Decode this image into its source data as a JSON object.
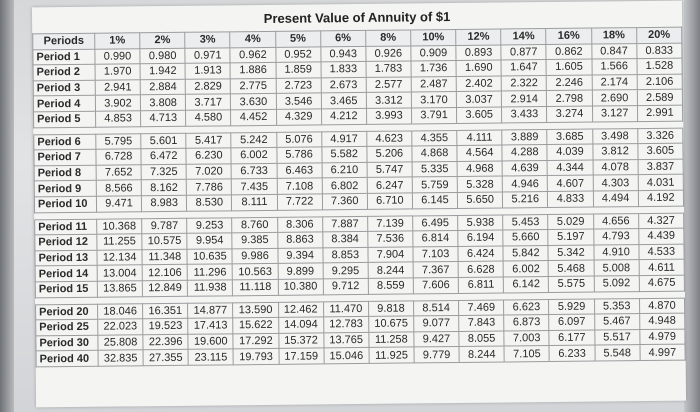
{
  "title": "Present Value of Annuity of $1",
  "header": [
    "Periods",
    "1%",
    "2%",
    "3%",
    "4%",
    "5%",
    "6%",
    "8%",
    "10%",
    "12%",
    "14%",
    "16%",
    "18%",
    "20%"
  ],
  "groups": [
    [
      {
        "label": "Period 1",
        "values": [
          "0.990",
          "0.980",
          "0.971",
          "0.962",
          "0.952",
          "0.943",
          "0.926",
          "0.909",
          "0.893",
          "0.877",
          "0.862",
          "0.847",
          "0.833"
        ]
      },
      {
        "label": "Period 2",
        "values": [
          "1.970",
          "1.942",
          "1.913",
          "1.886",
          "1.859",
          "1.833",
          "1.783",
          "1.736",
          "1.690",
          "1.647",
          "1.605",
          "1.566",
          "1.528"
        ]
      },
      {
        "label": "Period 3",
        "values": [
          "2.941",
          "2.884",
          "2.829",
          "2.775",
          "2.723",
          "2.673",
          "2.577",
          "2.487",
          "2.402",
          "2.322",
          "2.246",
          "2.174",
          "2.106"
        ]
      },
      {
        "label": "Period 4",
        "values": [
          "3.902",
          "3.808",
          "3.717",
          "3.630",
          "3.546",
          "3.465",
          "3.312",
          "3.170",
          "3.037",
          "2.914",
          "2.798",
          "2.690",
          "2.589"
        ]
      },
      {
        "label": "Period 5",
        "values": [
          "4.853",
          "4.713",
          "4.580",
          "4.452",
          "4.329",
          "4.212",
          "3.993",
          "3.791",
          "3.605",
          "3.433",
          "3.274",
          "3.127",
          "2.991"
        ]
      }
    ],
    [
      {
        "label": "Period 6",
        "values": [
          "5.795",
          "5.601",
          "5.417",
          "5.242",
          "5.076",
          "4.917",
          "4.623",
          "4.355",
          "4.111",
          "3.889",
          "3.685",
          "3.498",
          "3.326"
        ]
      },
      {
        "label": "Period 7",
        "values": [
          "6.728",
          "6.472",
          "6.230",
          "6.002",
          "5.786",
          "5.582",
          "5.206",
          "4.868",
          "4.564",
          "4.288",
          "4.039",
          "3.812",
          "3.605"
        ]
      },
      {
        "label": "Period 8",
        "values": [
          "7.652",
          "7.325",
          "7.020",
          "6.733",
          "6.463",
          "6.210",
          "5.747",
          "5.335",
          "4.968",
          "4.639",
          "4.344",
          "4.078",
          "3.837"
        ]
      },
      {
        "label": "Period 9",
        "values": [
          "8.566",
          "8.162",
          "7.786",
          "7.435",
          "7.108",
          "6.802",
          "6.247",
          "5.759",
          "5.328",
          "4.946",
          "4.607",
          "4.303",
          "4.031"
        ]
      },
      {
        "label": "Period 10",
        "values": [
          "9.471",
          "8.983",
          "8.530",
          "8.111",
          "7.722",
          "7.360",
          "6.710",
          "6.145",
          "5.650",
          "5.216",
          "4.833",
          "4.494",
          "4.192"
        ]
      }
    ],
    [
      {
        "label": "Period 11",
        "values": [
          "10.368",
          "9.787",
          "9.253",
          "8.760",
          "8.306",
          "7.887",
          "7.139",
          "6.495",
          "5.938",
          "5.453",
          "5.029",
          "4.656",
          "4.327"
        ]
      },
      {
        "label": "Period 12",
        "values": [
          "11.255",
          "10.575",
          "9.954",
          "9.385",
          "8.863",
          "8.384",
          "7.536",
          "6.814",
          "6.194",
          "5.660",
          "5.197",
          "4.793",
          "4.439"
        ]
      },
      {
        "label": "Period 13",
        "values": [
          "12.134",
          "11.348",
          "10.635",
          "9.986",
          "9.394",
          "8.853",
          "7.904",
          "7.103",
          "6.424",
          "5.842",
          "5.342",
          "4.910",
          "4.533"
        ]
      },
      {
        "label": "Period 14",
        "values": [
          "13.004",
          "12.106",
          "11.296",
          "10.563",
          "9.899",
          "9.295",
          "8.244",
          "7.367",
          "6.628",
          "6.002",
          "5.468",
          "5.008",
          "4.611"
        ]
      },
      {
        "label": "Period 15",
        "values": [
          "13.865",
          "12.849",
          "11.938",
          "11.118",
          "10.380",
          "9.712",
          "8.559",
          "7.606",
          "6.811",
          "6.142",
          "5.575",
          "5.092",
          "4.675"
        ]
      }
    ],
    [
      {
        "label": "Period 20",
        "values": [
          "18.046",
          "16.351",
          "14.877",
          "13.590",
          "12.462",
          "11.470",
          "9.818",
          "8.514",
          "7.469",
          "6.623",
          "5.929",
          "5.353",
          "4.870"
        ]
      },
      {
        "label": "Period 25",
        "values": [
          "22.023",
          "19.523",
          "17.413",
          "15.622",
          "14.094",
          "12.783",
          "10.675",
          "9.077",
          "7.843",
          "6.873",
          "6.097",
          "5.467",
          "4.948"
        ]
      },
      {
        "label": "Period 30",
        "values": [
          "25.808",
          "22.396",
          "19.600",
          "17.292",
          "15.372",
          "13.765",
          "11.258",
          "9.427",
          "8.055",
          "7.003",
          "6.177",
          "5.517",
          "4.979"
        ]
      },
      {
        "label": "Period 40",
        "values": [
          "32.835",
          "27.355",
          "23.115",
          "19.793",
          "17.159",
          "15.046",
          "11.925",
          "9.779",
          "8.244",
          "7.105",
          "6.233",
          "5.548",
          "4.997"
        ]
      }
    ]
  ]
}
